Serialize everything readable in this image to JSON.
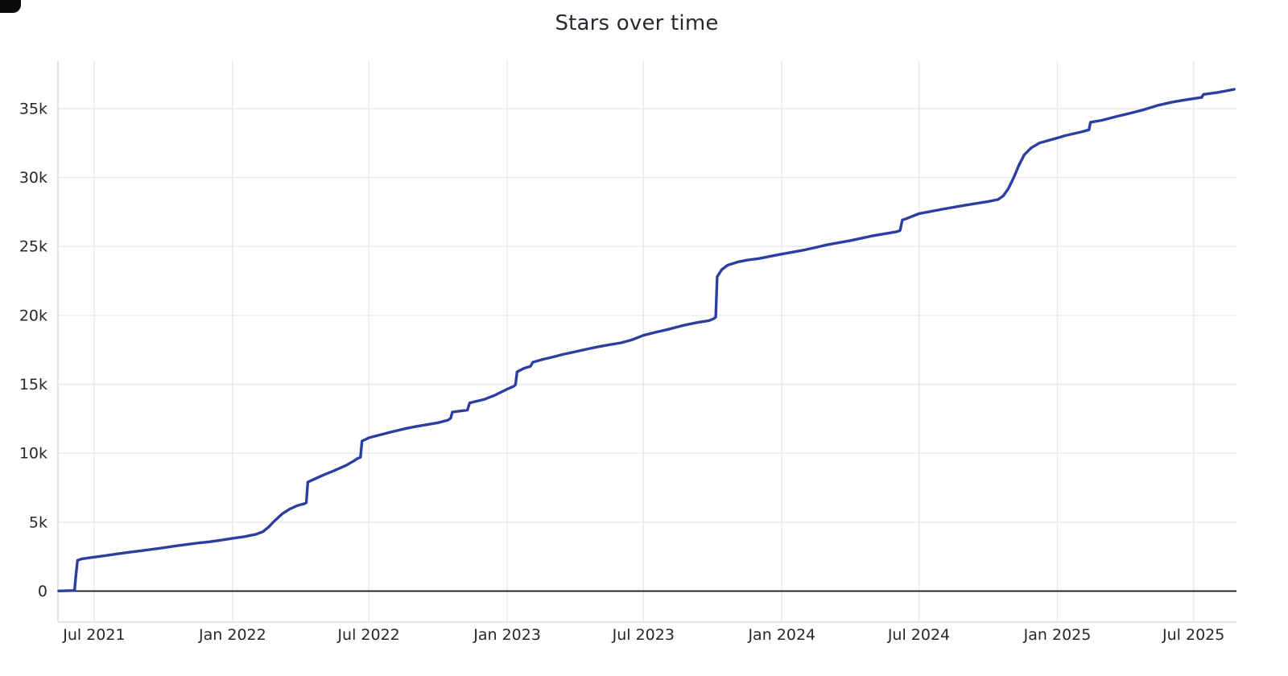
{
  "chart_data": {
    "type": "line",
    "title": "Stars over time",
    "xlabel": "",
    "ylabel": "",
    "grid": true,
    "legend": false,
    "xlim": [
      "2021-05-14",
      "2025-08-27"
    ],
    "ylim": [
      -2250,
      38500
    ],
    "x_ticks": [
      {
        "date": "2021-07-01",
        "label": "Jul 2021"
      },
      {
        "date": "2022-01-01",
        "label": "Jan 2022"
      },
      {
        "date": "2022-07-01",
        "label": "Jul 2022"
      },
      {
        "date": "2023-01-01",
        "label": "Jan 2023"
      },
      {
        "date": "2023-07-01",
        "label": "Jul 2023"
      },
      {
        "date": "2024-01-01",
        "label": "Jan 2024"
      },
      {
        "date": "2024-07-01",
        "label": "Jul 2024"
      },
      {
        "date": "2025-01-01",
        "label": "Jan 2025"
      },
      {
        "date": "2025-07-01",
        "label": "Jul 2025"
      }
    ],
    "y_ticks": [
      {
        "value": 0,
        "label": "0"
      },
      {
        "value": 5000,
        "label": "5k"
      },
      {
        "value": 10000,
        "label": "10k"
      },
      {
        "value": 15000,
        "label": "15k"
      },
      {
        "value": 20000,
        "label": "20k"
      },
      {
        "value": 25000,
        "label": "25k"
      },
      {
        "value": 30000,
        "label": "30k"
      },
      {
        "value": 35000,
        "label": "35k"
      }
    ],
    "colors": {
      "line": "#2c3e9f",
      "grid": "#e8e8ef",
      "axis_border": "#d9d9e3",
      "zero_line": "#111111",
      "text": "#26282c"
    },
    "series": [
      {
        "name": "stars",
        "points": [
          [
            "2021-05-15",
            10
          ],
          [
            "2021-06-05",
            40
          ],
          [
            "2021-06-07",
            1200
          ],
          [
            "2021-06-09",
            2230
          ],
          [
            "2021-06-15",
            2340
          ],
          [
            "2021-06-24",
            2410
          ],
          [
            "2021-07-01",
            2460
          ],
          [
            "2021-07-16",
            2570
          ],
          [
            "2021-08-01",
            2700
          ],
          [
            "2021-08-16",
            2810
          ],
          [
            "2021-09-01",
            2920
          ],
          [
            "2021-09-16",
            3030
          ],
          [
            "2021-10-01",
            3140
          ],
          [
            "2021-10-16",
            3260
          ],
          [
            "2021-11-01",
            3380
          ],
          [
            "2021-11-18",
            3500
          ],
          [
            "2021-12-01",
            3570
          ],
          [
            "2021-12-16",
            3690
          ],
          [
            "2022-01-01",
            3830
          ],
          [
            "2022-01-17",
            3950
          ],
          [
            "2022-02-01",
            4120
          ],
          [
            "2022-02-10",
            4300
          ],
          [
            "2022-02-18",
            4650
          ],
          [
            "2022-02-26",
            5100
          ],
          [
            "2022-03-08",
            5600
          ],
          [
            "2022-03-18",
            5950
          ],
          [
            "2022-03-28",
            6200
          ],
          [
            "2022-04-07",
            6350
          ],
          [
            "2022-04-09",
            6420
          ],
          [
            "2022-04-11",
            7900
          ],
          [
            "2022-04-22",
            8180
          ],
          [
            "2022-05-01",
            8400
          ],
          [
            "2022-05-16",
            8740
          ],
          [
            "2022-06-01",
            9120
          ],
          [
            "2022-06-11",
            9440
          ],
          [
            "2022-06-16",
            9620
          ],
          [
            "2022-06-20",
            9700
          ],
          [
            "2022-06-22",
            10880
          ],
          [
            "2022-06-28",
            11030
          ],
          [
            "2022-07-01",
            11120
          ],
          [
            "2022-07-16",
            11330
          ],
          [
            "2022-08-01",
            11560
          ],
          [
            "2022-08-20",
            11800
          ],
          [
            "2022-09-01",
            11930
          ],
          [
            "2022-09-16",
            12070
          ],
          [
            "2022-10-01",
            12210
          ],
          [
            "2022-10-14",
            12400
          ],
          [
            "2022-10-18",
            12550
          ],
          [
            "2022-10-20",
            12990
          ],
          [
            "2022-11-01",
            13070
          ],
          [
            "2022-11-09",
            13130
          ],
          [
            "2022-11-12",
            13650
          ],
          [
            "2022-11-21",
            13770
          ],
          [
            "2022-12-01",
            13900
          ],
          [
            "2022-12-16",
            14220
          ],
          [
            "2023-01-01",
            14650
          ],
          [
            "2023-01-10",
            14870
          ],
          [
            "2023-01-12",
            14980
          ],
          [
            "2023-01-14",
            15900
          ],
          [
            "2023-01-23",
            16160
          ],
          [
            "2023-02-01",
            16310
          ],
          [
            "2023-02-04",
            16600
          ],
          [
            "2023-02-18",
            16820
          ],
          [
            "2023-03-01",
            16960
          ],
          [
            "2023-03-16",
            17170
          ],
          [
            "2023-04-01",
            17360
          ],
          [
            "2023-04-16",
            17540
          ],
          [
            "2023-05-01",
            17710
          ],
          [
            "2023-05-16",
            17860
          ],
          [
            "2023-06-01",
            18010
          ],
          [
            "2023-06-15",
            18210
          ],
          [
            "2023-07-01",
            18550
          ],
          [
            "2023-07-16",
            18760
          ],
          [
            "2023-08-01",
            18960
          ],
          [
            "2023-08-25",
            19300
          ],
          [
            "2023-09-10",
            19480
          ],
          [
            "2023-09-26",
            19620
          ],
          [
            "2023-10-03",
            19780
          ],
          [
            "2023-10-05",
            19880
          ],
          [
            "2023-10-07",
            22800
          ],
          [
            "2023-10-13",
            23320
          ],
          [
            "2023-10-21",
            23640
          ],
          [
            "2023-11-03",
            23870
          ],
          [
            "2023-11-16",
            24010
          ],
          [
            "2023-12-01",
            24120
          ],
          [
            "2023-12-16",
            24280
          ],
          [
            "2024-01-01",
            24450
          ],
          [
            "2024-02-01",
            24760
          ],
          [
            "2024-03-01",
            25120
          ],
          [
            "2024-04-01",
            25430
          ],
          [
            "2024-05-01",
            25780
          ],
          [
            "2024-06-01",
            26060
          ],
          [
            "2024-06-06",
            26160
          ],
          [
            "2024-06-09",
            26920
          ],
          [
            "2024-06-14",
            27010
          ],
          [
            "2024-07-01",
            27380
          ],
          [
            "2024-08-01",
            27700
          ],
          [
            "2024-09-01",
            28000
          ],
          [
            "2024-10-01",
            28260
          ],
          [
            "2024-10-14",
            28400
          ],
          [
            "2024-10-21",
            28660
          ],
          [
            "2024-10-28",
            29200
          ],
          [
            "2024-11-04",
            30000
          ],
          [
            "2024-11-11",
            30900
          ],
          [
            "2024-11-18",
            31650
          ],
          [
            "2024-11-27",
            32150
          ],
          [
            "2024-12-08",
            32500
          ],
          [
            "2024-12-22",
            32720
          ],
          [
            "2025-01-01",
            32870
          ],
          [
            "2025-01-12",
            33050
          ],
          [
            "2025-02-02",
            33310
          ],
          [
            "2025-02-12",
            33460
          ],
          [
            "2025-02-14",
            34010
          ],
          [
            "2025-03-01",
            34150
          ],
          [
            "2025-03-20",
            34420
          ],
          [
            "2025-04-10",
            34700
          ],
          [
            "2025-04-26",
            34920
          ],
          [
            "2025-05-15",
            35240
          ],
          [
            "2025-06-01",
            35450
          ],
          [
            "2025-06-16",
            35600
          ],
          [
            "2025-07-01",
            35720
          ],
          [
            "2025-07-12",
            35820
          ],
          [
            "2025-07-14",
            36030
          ],
          [
            "2025-08-01",
            36160
          ],
          [
            "2025-08-24",
            36400
          ]
        ]
      }
    ]
  }
}
